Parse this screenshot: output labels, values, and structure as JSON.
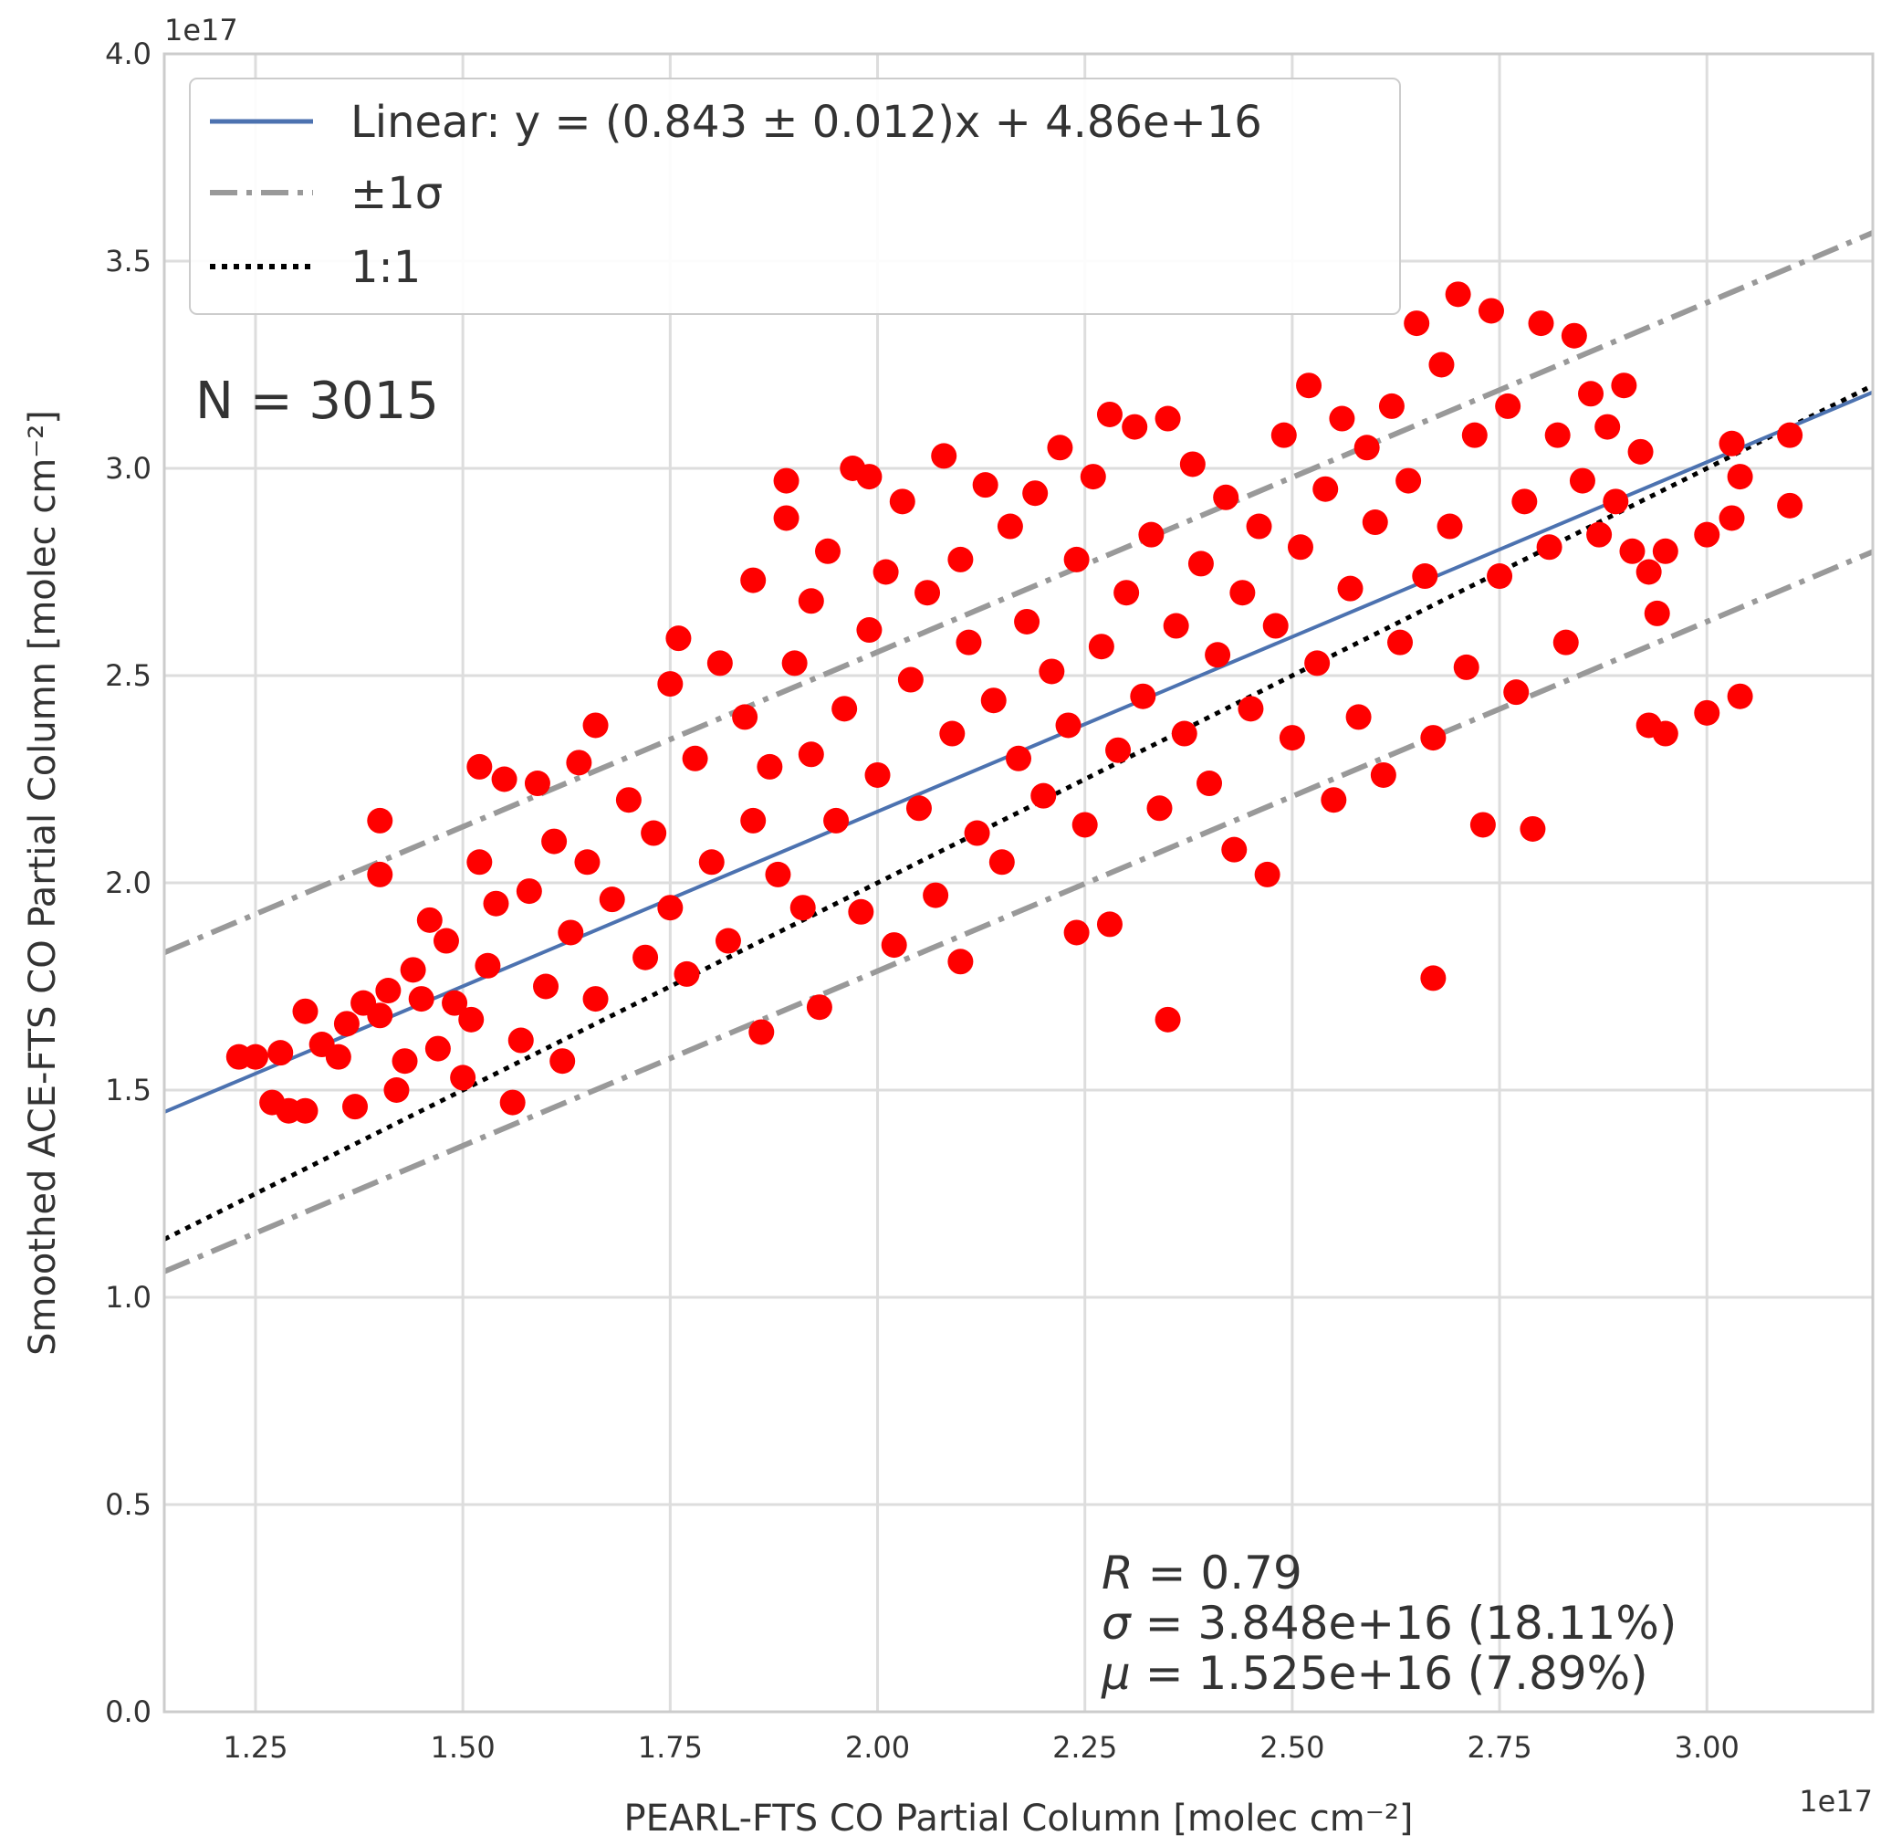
{
  "chart_data": {
    "type": "scatter",
    "xlabel": "PEARL-FTS CO Partial Column [molec cm⁻²]",
    "ylabel": "Smoothed ACE-FTS CO Partial Column [molec cm⁻²]",
    "x_offset_label": "1e17",
    "y_offset_label": "1e17",
    "xlim": [
      1.14,
      3.2
    ],
    "ylim": [
      0.0,
      4.0
    ],
    "xticks": [
      "1.25",
      "1.50",
      "1.75",
      "2.00",
      "2.25",
      "2.50",
      "2.75",
      "3.00"
    ],
    "yticks": [
      "0.0",
      "0.5",
      "1.0",
      "1.5",
      "2.0",
      "2.5",
      "3.0",
      "3.5",
      "4.0"
    ],
    "grid": true,
    "legend_position": "upper-left",
    "n_label": "N = 3015",
    "stats": {
      "r_symbol": "R",
      "r_text": " = 0.79",
      "sigma_symbol": "σ",
      "sigma_text": " = 3.848e+16 (18.11%)",
      "mu_symbol": "μ",
      "mu_text": " = 1.525e+16 (7.89%)"
    },
    "fit": {
      "slope": 0.843,
      "intercept": 0.486
    },
    "sigma_band": 0.3848,
    "series": [
      {
        "name": "Linear: y = (0.843 ± 0.012)x + 4.86e+16",
        "kind": "line",
        "style": "solid",
        "color": "#4c72b0"
      },
      {
        "name": "±1σ",
        "kind": "line",
        "style": "dashdot",
        "color": "#999999"
      },
      {
        "name": "1:1",
        "kind": "line",
        "style": "dotted",
        "color": "#000000"
      },
      {
        "name": "",
        "kind": "scatter",
        "color": "#ff0000",
        "points": [
          [
            1.23,
            1.58
          ],
          [
            1.25,
            1.58
          ],
          [
            1.28,
            1.59
          ],
          [
            1.27,
            1.47
          ],
          [
            1.29,
            1.45
          ],
          [
            1.31,
            1.45
          ],
          [
            1.31,
            1.69
          ],
          [
            1.33,
            1.61
          ],
          [
            1.35,
            1.58
          ],
          [
            1.36,
            1.66
          ],
          [
            1.37,
            1.46
          ],
          [
            1.38,
            1.71
          ],
          [
            1.4,
            1.68
          ],
          [
            1.4,
            2.15
          ],
          [
            1.4,
            2.02
          ],
          [
            1.41,
            1.74
          ],
          [
            1.42,
            1.5
          ],
          [
            1.43,
            1.57
          ],
          [
            1.44,
            1.79
          ],
          [
            1.45,
            1.72
          ],
          [
            1.46,
            1.91
          ],
          [
            1.47,
            1.6
          ],
          [
            1.48,
            1.86
          ],
          [
            1.49,
            1.71
          ],
          [
            1.5,
            1.53
          ],
          [
            1.51,
            1.67
          ],
          [
            1.52,
            2.28
          ],
          [
            1.52,
            2.05
          ],
          [
            1.53,
            1.8
          ],
          [
            1.54,
            1.95
          ],
          [
            1.55,
            2.25
          ],
          [
            1.56,
            1.47
          ],
          [
            1.57,
            1.62
          ],
          [
            1.58,
            1.98
          ],
          [
            1.59,
            2.24
          ],
          [
            1.6,
            1.75
          ],
          [
            1.61,
            2.1
          ],
          [
            1.62,
            1.57
          ],
          [
            1.63,
            1.88
          ],
          [
            1.64,
            2.29
          ],
          [
            1.65,
            2.05
          ],
          [
            1.66,
            2.38
          ],
          [
            1.66,
            1.72
          ],
          [
            1.68,
            1.96
          ],
          [
            1.7,
            2.2
          ],
          [
            1.72,
            1.82
          ],
          [
            1.73,
            2.12
          ],
          [
            1.75,
            2.48
          ],
          [
            1.75,
            1.94
          ],
          [
            1.76,
            2.59
          ],
          [
            1.77,
            1.78
          ],
          [
            1.78,
            2.3
          ],
          [
            1.8,
            2.05
          ],
          [
            1.81,
            2.53
          ],
          [
            1.82,
            1.86
          ],
          [
            1.84,
            2.4
          ],
          [
            1.85,
            2.73
          ],
          [
            1.85,
            2.15
          ],
          [
            1.86,
            1.64
          ],
          [
            1.87,
            2.28
          ],
          [
            1.88,
            2.02
          ],
          [
            1.89,
            2.97
          ],
          [
            1.89,
            2.88
          ],
          [
            1.9,
            2.53
          ],
          [
            1.91,
            1.94
          ],
          [
            1.92,
            2.68
          ],
          [
            1.92,
            2.31
          ],
          [
            1.93,
            1.7
          ],
          [
            1.94,
            2.8
          ],
          [
            1.95,
            2.15
          ],
          [
            1.96,
            2.42
          ],
          [
            1.97,
            3.0
          ],
          [
            1.98,
            1.93
          ],
          [
            1.99,
            2.61
          ],
          [
            1.99,
            2.98
          ],
          [
            2.0,
            2.26
          ],
          [
            2.01,
            2.75
          ],
          [
            2.02,
            1.85
          ],
          [
            2.03,
            2.92
          ],
          [
            2.04,
            2.49
          ],
          [
            2.05,
            2.18
          ],
          [
            2.06,
            2.7
          ],
          [
            2.07,
            1.97
          ],
          [
            2.08,
            3.03
          ],
          [
            2.09,
            2.36
          ],
          [
            2.1,
            2.78
          ],
          [
            2.1,
            1.81
          ],
          [
            2.11,
            2.58
          ],
          [
            2.12,
            2.12
          ],
          [
            2.13,
            2.96
          ],
          [
            2.14,
            2.44
          ],
          [
            2.15,
            2.05
          ],
          [
            2.16,
            2.86
          ],
          [
            2.17,
            2.3
          ],
          [
            2.18,
            2.63
          ],
          [
            2.19,
            2.94
          ],
          [
            2.2,
            2.21
          ],
          [
            2.21,
            2.51
          ],
          [
            2.22,
            3.05
          ],
          [
            2.23,
            2.38
          ],
          [
            2.24,
            2.78
          ],
          [
            2.24,
            1.88
          ],
          [
            2.25,
            2.14
          ],
          [
            2.26,
            2.98
          ],
          [
            2.27,
            2.57
          ],
          [
            2.28,
            3.13
          ],
          [
            2.28,
            1.9
          ],
          [
            2.29,
            2.32
          ],
          [
            2.3,
            2.7
          ],
          [
            2.31,
            3.1
          ],
          [
            2.32,
            2.45
          ],
          [
            2.33,
            2.84
          ],
          [
            2.34,
            2.18
          ],
          [
            2.35,
            3.12
          ],
          [
            2.35,
            1.67
          ],
          [
            2.36,
            2.62
          ],
          [
            2.37,
            2.36
          ],
          [
            2.38,
            3.01
          ],
          [
            2.39,
            2.77
          ],
          [
            2.4,
            2.24
          ],
          [
            2.41,
            2.55
          ],
          [
            2.42,
            2.93
          ],
          [
            2.43,
            2.08
          ],
          [
            2.44,
            2.7
          ],
          [
            2.45,
            2.42
          ],
          [
            2.46,
            2.86
          ],
          [
            2.47,
            2.02
          ],
          [
            2.48,
            2.62
          ],
          [
            2.49,
            3.08
          ],
          [
            2.5,
            2.35
          ],
          [
            2.51,
            2.81
          ],
          [
            2.52,
            3.2
          ],
          [
            2.53,
            2.53
          ],
          [
            2.54,
            2.95
          ],
          [
            2.55,
            2.2
          ],
          [
            2.56,
            3.12
          ],
          [
            2.57,
            2.71
          ],
          [
            2.58,
            2.4
          ],
          [
            2.59,
            3.05
          ],
          [
            2.6,
            2.87
          ],
          [
            2.61,
            2.26
          ],
          [
            2.62,
            3.15
          ],
          [
            2.63,
            2.58
          ],
          [
            2.64,
            2.97
          ],
          [
            2.65,
            3.35
          ],
          [
            2.66,
            2.74
          ],
          [
            2.67,
            1.77
          ],
          [
            2.67,
            2.35
          ],
          [
            2.68,
            3.25
          ],
          [
            2.69,
            2.86
          ],
          [
            2.7,
            3.42
          ],
          [
            2.71,
            2.52
          ],
          [
            2.72,
            3.08
          ],
          [
            2.73,
            2.14
          ],
          [
            2.74,
            3.38
          ],
          [
            2.75,
            2.74
          ],
          [
            2.76,
            3.15
          ],
          [
            2.77,
            2.46
          ],
          [
            2.78,
            2.92
          ],
          [
            2.79,
            2.13
          ],
          [
            2.8,
            3.35
          ],
          [
            2.81,
            2.81
          ],
          [
            2.82,
            3.08
          ],
          [
            2.83,
            2.58
          ],
          [
            2.84,
            3.32
          ],
          [
            2.85,
            2.97
          ],
          [
            2.86,
            3.18
          ],
          [
            2.87,
            2.84
          ],
          [
            2.88,
            3.1
          ],
          [
            2.89,
            2.92
          ],
          [
            2.9,
            3.2
          ],
          [
            2.91,
            2.8
          ],
          [
            2.92,
            3.04
          ],
          [
            2.93,
            2.38
          ],
          [
            2.93,
            2.75
          ],
          [
            2.94,
            2.65
          ],
          [
            2.95,
            2.36
          ],
          [
            2.95,
            2.8
          ],
          [
            3.0,
            2.41
          ],
          [
            3.0,
            2.84
          ],
          [
            3.03,
            2.88
          ],
          [
            3.03,
            3.06
          ],
          [
            3.04,
            2.45
          ],
          [
            3.04,
            2.98
          ],
          [
            3.1,
            3.08
          ],
          [
            3.1,
            2.91
          ]
        ]
      }
    ]
  }
}
